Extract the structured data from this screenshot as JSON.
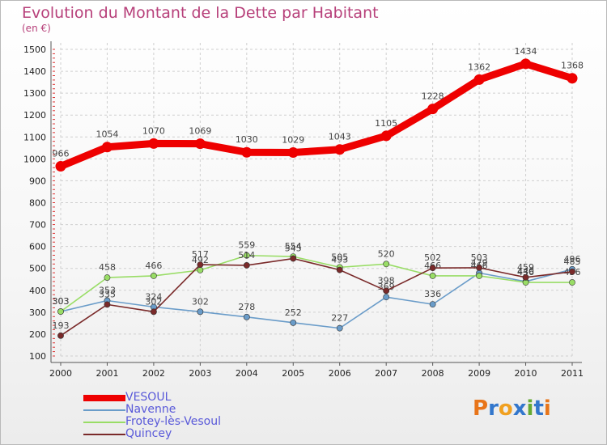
{
  "chart_data": {
    "type": "line",
    "title": "Evolution du Montant de la Dette par Habitant",
    "subtitle": "(en €)",
    "x": [
      "2000",
      "2001",
      "2002",
      "2003",
      "2004",
      "2005",
      "2006",
      "2007",
      "2008",
      "2009",
      "2010",
      "2011"
    ],
    "ylim": [
      100,
      1500
    ],
    "yticks": [
      100,
      200,
      300,
      400,
      500,
      600,
      700,
      800,
      900,
      1000,
      1100,
      1200,
      1300,
      1400,
      1500
    ],
    "grid": true,
    "legend_position": "bottom-left",
    "series": [
      {
        "name": "VESOUL",
        "color": "#ee0000",
        "values": [
          966,
          1054,
          1070,
          1069,
          1030,
          1029,
          1043,
          1105,
          1228,
          1362,
          1434,
          1368
        ]
      },
      {
        "name": "Navenne",
        "color": "#6a9cc9",
        "values": [
          303,
          353,
          324,
          302,
          278,
          252,
          227,
          369,
          336,
          479,
          440,
          496
        ]
      },
      {
        "name": "Frotey-lès-Vesoul",
        "color": "#99dd66",
        "values": [
          303,
          458,
          466,
          492,
          559,
          554,
          505,
          520,
          466,
          466,
          436,
          436
        ]
      },
      {
        "name": "Quincey",
        "color": "#7a2a2a",
        "values": [
          193,
          335,
          302,
          517,
          514,
          545,
          493,
          398,
          502,
          503,
          459,
          485
        ]
      }
    ]
  },
  "logo": {
    "letters": [
      "P",
      "r",
      "o",
      "x",
      "i",
      "t",
      "i"
    ],
    "colors": [
      "#e8751a",
      "#3377cc",
      "#f0a020",
      "#3377cc",
      "#66aa33",
      "#3377cc",
      "#e8751a"
    ]
  }
}
